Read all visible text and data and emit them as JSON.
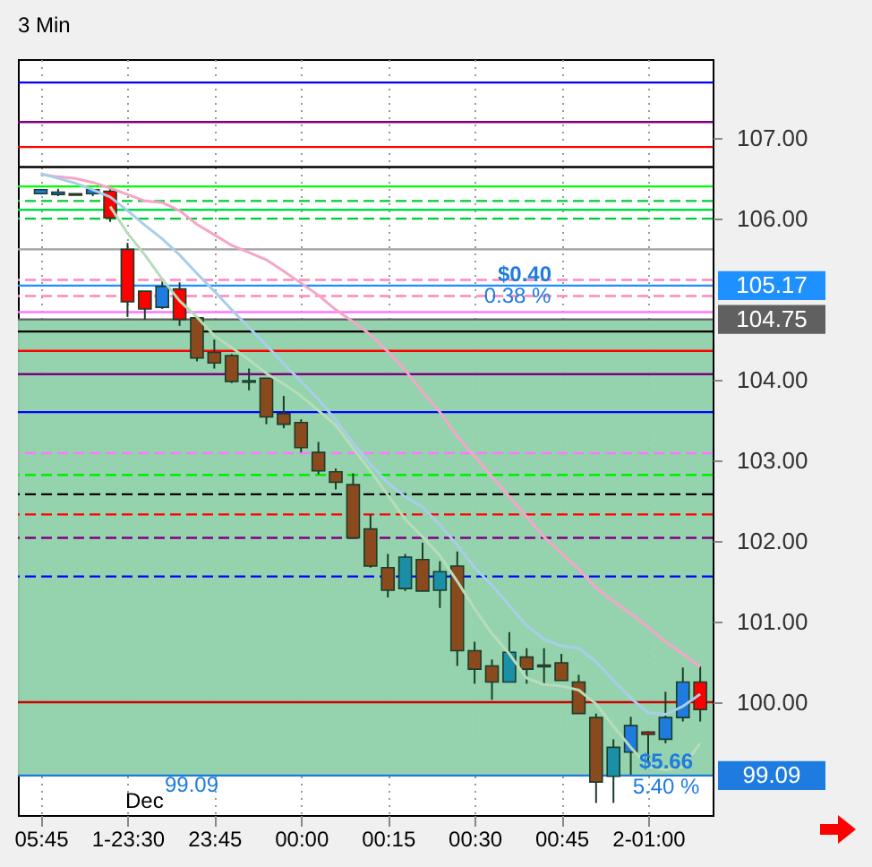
{
  "chart_data": {
    "type": "candlestick",
    "title": "3 Min",
    "categories": [
      "05:45",
      null,
      null,
      null,
      null,
      "1-23:30",
      null,
      null,
      null,
      null,
      "23:45",
      null,
      null,
      null,
      null,
      "00:00",
      null,
      null,
      null,
      null,
      "00:15",
      null,
      null,
      null,
      null,
      "00:30",
      null,
      null,
      null,
      null,
      "00:45",
      null,
      null,
      null,
      null,
      "2-01:00",
      null,
      null,
      null
    ],
    "ohlc": [
      [
        106.31,
        106.37,
        106.3,
        106.36
      ],
      [
        106.33,
        106.37,
        106.28,
        106.3
      ],
      [
        106.31,
        106.31,
        106.29,
        106.29
      ],
      [
        106.31,
        106.37,
        106.28,
        106.36
      ],
      [
        106.34,
        106.37,
        105.96,
        106.01
      ],
      [
        105.62,
        105.7,
        104.78,
        104.97
      ],
      [
        105.1,
        105.1,
        104.75,
        104.88
      ],
      [
        104.9,
        105.22,
        104.88,
        105.16
      ],
      [
        105.13,
        105.21,
        104.67,
        104.75
      ],
      [
        104.77,
        104.77,
        104.23,
        104.27
      ],
      [
        104.34,
        104.5,
        104.14,
        104.21
      ],
      [
        104.3,
        104.32,
        103.96,
        103.98
      ],
      [
        103.97,
        104.14,
        103.87,
        103.99
      ],
      [
        104.02,
        104.02,
        103.45,
        103.54
      ],
      [
        103.58,
        103.8,
        103.4,
        103.45
      ],
      [
        103.47,
        103.51,
        103.1,
        103.16
      ],
      [
        103.1,
        103.23,
        102.83,
        102.87
      ],
      [
        102.86,
        102.9,
        102.64,
        102.73
      ],
      [
        102.7,
        102.84,
        102.04,
        102.04
      ],
      [
        102.15,
        102.33,
        101.67,
        101.69
      ],
      [
        101.67,
        101.84,
        101.3,
        101.39
      ],
      [
        101.41,
        101.84,
        101.38,
        101.8
      ],
      [
        101.77,
        101.98,
        101.38,
        101.38
      ],
      [
        101.39,
        101.75,
        101.17,
        101.62
      ],
      [
        101.69,
        101.87,
        100.45,
        100.64
      ],
      [
        100.64,
        100.75,
        100.23,
        100.41
      ],
      [
        100.45,
        100.53,
        100.03,
        100.25
      ],
      [
        100.25,
        100.87,
        100.25,
        100.62
      ],
      [
        100.56,
        100.67,
        100.23,
        100.41
      ],
      [
        100.46,
        100.67,
        100.23,
        100.44
      ],
      [
        100.49,
        100.6,
        100.27,
        100.27
      ],
      [
        100.25,
        100.34,
        99.86,
        99.86
      ],
      [
        99.81,
        99.86,
        98.75,
        99.01
      ],
      [
        99.08,
        99.54,
        98.75,
        99.44
      ],
      [
        99.38,
        99.82,
        99.1,
        99.71
      ],
      [
        99.63,
        99.64,
        99.24,
        99.6
      ],
      [
        99.54,
        100.13,
        99.49,
        99.81
      ],
      [
        99.81,
        100.43,
        99.76,
        100.25
      ],
      [
        100.25,
        100.45,
        99.76,
        99.91
      ]
    ],
    "colors": [
      "#1e7be0",
      "#1e7be0",
      "#ff0000",
      "#1e7be0",
      "#ff0000",
      "#ff0000",
      "#ff0000",
      "#1e7be0",
      "#ff0000",
      "#8b4a1e",
      "#8b4a1e",
      "#8b4a1e",
      "#1a8fa8",
      "#8b4a1e",
      "#8b4a1e",
      "#8b4a1e",
      "#8b4a1e",
      "#8b4a1e",
      "#8b4a1e",
      "#8b4a1e",
      "#8b4a1e",
      "#1a8fa8",
      "#8b4a1e",
      "#1a8fa8",
      "#8b4a1e",
      "#8b4a1e",
      "#8b4a1e",
      "#1a8fa8",
      "#8b4a1e",
      "#8b4a1e",
      "#8b4a1e",
      "#8b4a1e",
      "#8b4a1e",
      "#1a8fa8",
      "#1e7be0",
      "#ff0000",
      "#1e7be0",
      "#1e7be0",
      "#ff0000"
    ],
    "series": [
      {
        "type": "line",
        "color": "#f4a6c8",
        "values": [
          106.55,
          106.52,
          106.5,
          106.45,
          106.38,
          106.3,
          106.22,
          106.2,
          106.1,
          105.93,
          105.8,
          105.67,
          105.58,
          105.49,
          105.35,
          105.2,
          105.05,
          104.87,
          104.72,
          104.56,
          104.35,
          104.12,
          103.85,
          103.6,
          103.3,
          103.05,
          102.8,
          102.55,
          102.3,
          102.05,
          101.85,
          101.65,
          101.42,
          101.25,
          101.1,
          100.93,
          100.75,
          100.6,
          100.44
        ]
      },
      {
        "type": "line",
        "color": "#a9cdea",
        "values": [
          106.56,
          106.5,
          106.44,
          106.36,
          106.27,
          106.1,
          105.92,
          105.75,
          105.55,
          105.32,
          105.1,
          104.87,
          104.65,
          104.43,
          104.2,
          103.98,
          103.76,
          103.5,
          103.22,
          102.95,
          102.72,
          102.55,
          102.42,
          102.2,
          101.95,
          101.67,
          101.45,
          101.2,
          100.95,
          100.78,
          100.7,
          100.67,
          100.5,
          100.27,
          100.05,
          99.87,
          99.85,
          99.95,
          100.1
        ]
      },
      {
        "type": "line",
        "color": "#b8dcb8",
        "values": [
          null,
          null,
          null,
          null,
          106.15,
          105.82,
          105.55,
          105.25,
          104.98,
          104.78,
          104.55,
          104.4,
          104.25,
          104.08,
          103.95,
          103.8,
          103.62,
          103.44,
          103.15,
          102.87,
          102.57,
          102.27,
          102.05,
          101.82,
          101.5,
          101.16,
          100.85,
          100.6,
          100.3,
          100.22,
          100.2,
          100.15,
          99.98,
          99.7,
          99.44,
          99.2,
          99.16,
          99.2,
          99.49
        ]
      }
    ],
    "ylim": [
      98.6,
      107.98
    ],
    "yticks": [
      {
        "value": 100,
        "label": "100.00"
      },
      {
        "value": 101,
        "label": "101.00"
      },
      {
        "value": 102,
        "label": "102.00"
      },
      {
        "value": 103,
        "label": "103.00"
      },
      {
        "value": 104,
        "label": "104.00"
      },
      {
        "value": 106,
        "label": "106.00"
      },
      {
        "value": 107,
        "label": "107.00"
      }
    ],
    "grid": "x",
    "bands": [
      {
        "axis": "y",
        "from": 99.09,
        "to": 104.75,
        "color": "#8fd1aa"
      }
    ],
    "ref_lines": [
      {
        "axis": "y",
        "value": 107.69,
        "color": "#0000ff"
      },
      {
        "axis": "y",
        "value": 107.2,
        "color": "#800080"
      },
      {
        "axis": "y",
        "value": 106.89,
        "color": "#ff0000"
      },
      {
        "axis": "y",
        "value": 106.64,
        "color": "#000000"
      },
      {
        "axis": "y",
        "value": 106.4,
        "color": "#00ff00"
      },
      {
        "axis": "y",
        "value": 106.22,
        "color": "#00cc33",
        "line_style": "dashed"
      },
      {
        "axis": "y",
        "value": 106.11,
        "color": "#00dd44"
      },
      {
        "axis": "y",
        "value": 106.0,
        "color": "#00cc33",
        "line_style": "dashed"
      },
      {
        "axis": "y",
        "value": 105.62,
        "color": "#a0a0a0"
      },
      {
        "axis": "y",
        "value": 105.24,
        "color": "#ff88bb",
        "line_style": "dashed"
      },
      {
        "axis": "y",
        "value": 105.17,
        "color": "#1e90ff",
        "label": "105.17"
      },
      {
        "axis": "y",
        "value": 105.04,
        "color": "#ff88bb",
        "line_style": "dashed"
      },
      {
        "axis": "y",
        "value": 104.84,
        "color": "#ff77ff"
      },
      {
        "axis": "y",
        "value": 104.75,
        "color": "#606060",
        "label": "104.75"
      },
      {
        "axis": "y",
        "value": 104.6,
        "color": "#000000"
      },
      {
        "axis": "y",
        "value": 104.36,
        "color": "#ff0000"
      },
      {
        "axis": "y",
        "value": 104.07,
        "color": "#800080"
      },
      {
        "axis": "y",
        "value": 103.6,
        "color": "#0000ff"
      },
      {
        "axis": "y",
        "value": 103.09,
        "color": "#ff77ff",
        "line_style": "dashed"
      },
      {
        "axis": "y",
        "value": 102.82,
        "color": "#00ee00",
        "line_style": "dashed"
      },
      {
        "axis": "y",
        "value": 102.58,
        "color": "#000000",
        "line_style": "dashed"
      },
      {
        "axis": "y",
        "value": 102.33,
        "color": "#ff0000",
        "line_style": "dashed"
      },
      {
        "axis": "y",
        "value": 102.04,
        "color": "#800080",
        "line_style": "dashed"
      },
      {
        "axis": "y",
        "value": 101.56,
        "color": "#0000ff",
        "line_style": "dashed"
      },
      {
        "axis": "y",
        "value": 100.0,
        "color": "#cc0000"
      },
      {
        "axis": "y",
        "value": 99.09,
        "color": "#1e7be0",
        "label": "99.09"
      }
    ],
    "annotations": [
      "$0.40",
      "0.38 %",
      "$5.66",
      "5.40 %",
      "99.09",
      "Dec"
    ]
  }
}
